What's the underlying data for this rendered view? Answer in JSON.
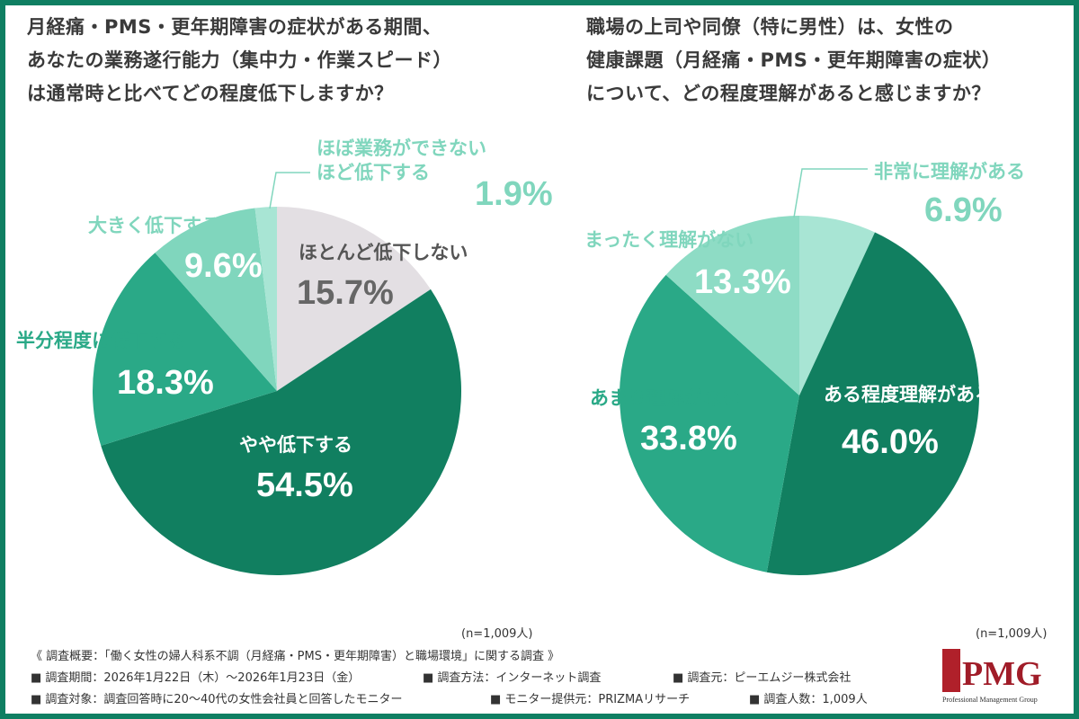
{
  "chart_data": [
    {
      "type": "pie",
      "title": "月経痛・PMS・更年期障害の症状がある期間、\nあなたの業務遂行能力（集中力・作業スピード）\nは通常時と比べてどの程度低下しますか？",
      "categories": [
        "ほとんど低下しない",
        "やや低下する",
        "半分程度に低下する",
        "大きく低下する",
        "ほぼ業務ができない\nほど低下する"
      ],
      "values": [
        15.7,
        54.5,
        18.3,
        9.6,
        1.9
      ],
      "labels": [
        "15.7%",
        "54.5%",
        "18.3%",
        "9.6%",
        "1.9%"
      ],
      "colors": [
        "#e3dfe3",
        "#117f60",
        "#2aa987",
        "#80d6bd",
        "#a8e5d4"
      ],
      "note": "(n=1,009人)"
    },
    {
      "type": "pie",
      "title": "職場の上司や同僚（特に男性）は、女性の\n健康課題（月経痛・PMS・更年期障害の症状）\nについて、どの程度理解があると感じますか？",
      "categories": [
        "非常に理解がある",
        "ある程度理解がある",
        "あまり理解がない",
        "まったく理解がない"
      ],
      "values": [
        6.9,
        46.0,
        33.8,
        13.3
      ],
      "labels": [
        "6.9%",
        "46.0%",
        "33.8%",
        "13.3%"
      ],
      "colors": [
        "#a8e5d4",
        "#117f60",
        "#2aa987",
        "#8edcc5"
      ],
      "note": "(n=1,009人)"
    }
  ],
  "footer": {
    "summary": "《 調査概要：「働く女性の婦人科系不調（月経痛・PMS・更年期障害）と職場環境」に関する調査 》",
    "period": "■ 調査期間：2026年1月22日（木）～2026年1月23日（金）",
    "method": "■ 調査方法：インターネット調査",
    "source": "■ 調査元：ピーエムジー株式会社",
    "target": "■ 調査対象：調査回答時に20～40代の女性会社員と回答したモニター",
    "provider": "■ モニター提供元：PRIZMAリサーチ",
    "count": "■ 調査人数：1,009人"
  },
  "logo": {
    "name": "PMG",
    "tagline": "Professional Management Group"
  }
}
